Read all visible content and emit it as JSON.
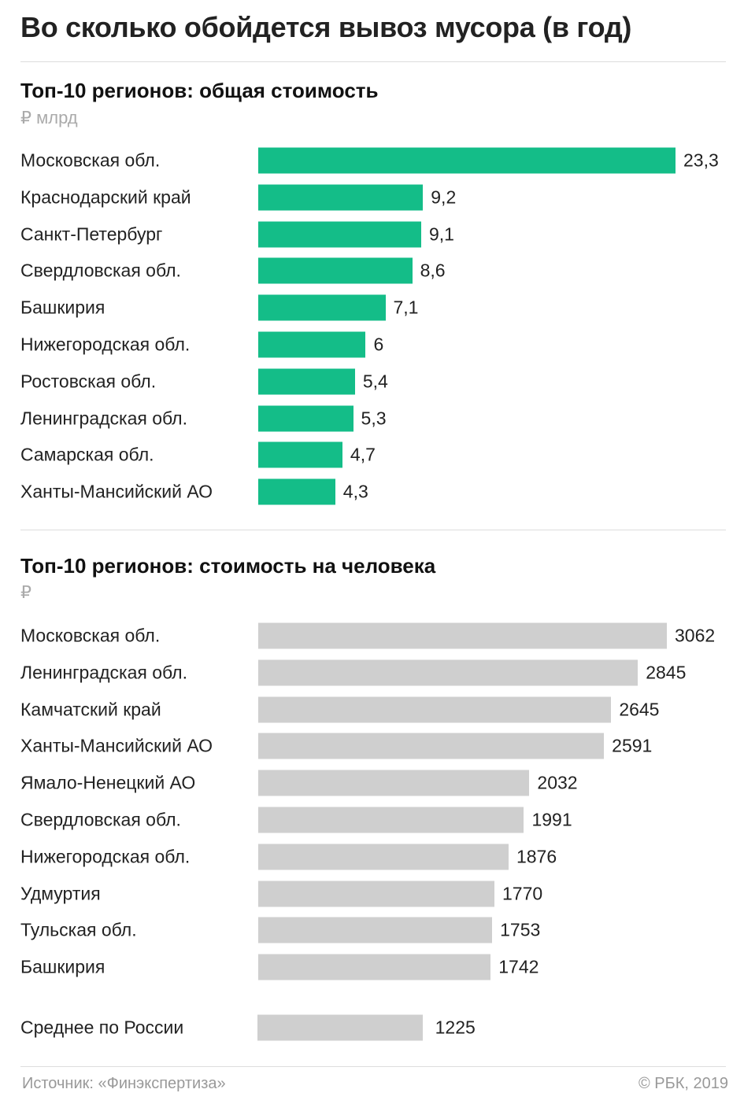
{
  "title": "Во сколько обойдется вывоз мусора (в год)",
  "chart_data": [
    {
      "type": "bar",
      "orientation": "horizontal",
      "title": "Топ-10 регионов: общая стоимость",
      "unit": "₽ млрд",
      "color": "#14bd88",
      "categories": [
        "Московская обл.",
        "Краснодарский край",
        "Санкт-Петербург",
        "Свердловская обл.",
        "Башкирия",
        "Нижегородская обл.",
        "Ростовская обл.",
        "Ленинградская обл.",
        "Самарская обл.",
        "Ханты-Мансийский АО"
      ],
      "values": [
        23.3,
        9.2,
        9.1,
        8.6,
        7.1,
        6,
        5.4,
        5.3,
        4.7,
        4.3
      ],
      "value_labels": [
        "23,3",
        "9,2",
        "9,1",
        "8,6",
        "7,1",
        "6",
        "5,4",
        "5,3",
        "4,7",
        "4,3"
      ]
    },
    {
      "type": "bar",
      "orientation": "horizontal",
      "title": "Топ-10 регионов: стоимость на человека",
      "unit": "₽",
      "color": "#cfcfcf",
      "categories": [
        "Московская обл.",
        "Ленинградская обл.",
        "Камчатский край",
        "Ханты-Мансийский АО",
        "Ямало-Ненецкий АО",
        "Свердловская обл.",
        "Нижегородская обл.",
        "Удмуртия",
        "Тульская обл.",
        "Башкирия"
      ],
      "values": [
        3062,
        2845,
        2645,
        2591,
        2032,
        1991,
        1876,
        1770,
        1753,
        1742
      ],
      "value_labels": [
        "3062",
        "2845",
        "2645",
        "2591",
        "2032",
        "1991",
        "1876",
        "1770",
        "1753",
        "1742"
      ],
      "average": {
        "label": "Среднее по России",
        "value": 1225,
        "value_label": "1225"
      }
    }
  ],
  "footer": {
    "source": "Источник: «Финэкспертиза»",
    "copyright": "© РБК, 2019"
  }
}
